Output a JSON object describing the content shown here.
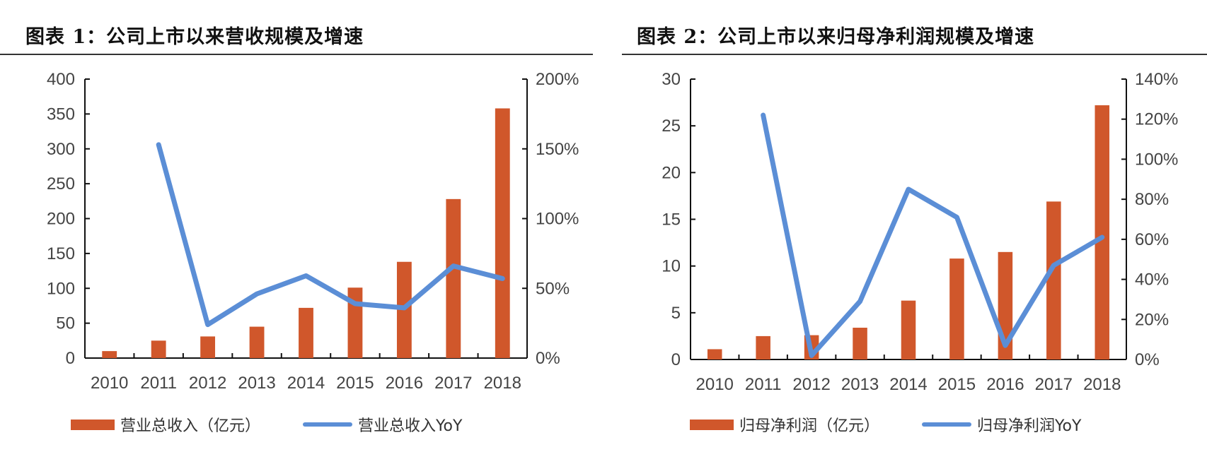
{
  "chart_data": [
    {
      "type": "bar+line",
      "title": "图表 1：公司上市以来营收规模及增速",
      "categories": [
        "2010",
        "2011",
        "2012",
        "2013",
        "2014",
        "2015",
        "2016",
        "2017",
        "2018"
      ],
      "series": [
        {
          "name": "营业总收入（亿元）",
          "type": "bar",
          "axis": "left",
          "color": "#D0572B",
          "values": [
            10,
            25,
            31,
            45,
            72,
            101,
            138,
            228,
            358
          ]
        },
        {
          "name": "营业总收入YoY",
          "type": "line",
          "axis": "right",
          "color": "#5B8ED6",
          "values": [
            null,
            153,
            24,
            46,
            59,
            39,
            36,
            66,
            57
          ]
        }
      ],
      "ylim_left": [
        0,
        400
      ],
      "yticks_left": [
        "0",
        "50",
        "100",
        "150",
        "200",
        "250",
        "300",
        "350",
        "400"
      ],
      "ylim_right": [
        0,
        200
      ],
      "yticks_right": [
        "0%",
        "50%",
        "100%",
        "150%",
        "200%"
      ],
      "grid": false,
      "legend": "bottom"
    },
    {
      "type": "bar+line",
      "title": "图表 2：公司上市以来归母净利润规模及增速",
      "categories": [
        "2010",
        "2011",
        "2012",
        "2013",
        "2014",
        "2015",
        "2016",
        "2017",
        "2018"
      ],
      "series": [
        {
          "name": "归母净利润（亿元）",
          "type": "bar",
          "axis": "left",
          "color": "#D0572B",
          "values": [
            1.1,
            2.5,
            2.6,
            3.4,
            6.3,
            10.8,
            11.5,
            16.9,
            27.2
          ]
        },
        {
          "name": "归母净利润YoY",
          "type": "line",
          "axis": "right",
          "color": "#5B8ED6",
          "values": [
            null,
            122,
            2,
            29,
            85,
            71,
            7,
            47,
            61
          ]
        }
      ],
      "ylim_left": [
        0,
        30
      ],
      "yticks_left": [
        "0",
        "5",
        "10",
        "15",
        "20",
        "25",
        "30"
      ],
      "ylim_right": [
        0,
        140
      ],
      "yticks_right": [
        "0%",
        "20%",
        "40%",
        "60%",
        "80%",
        "100%",
        "120%",
        "140%"
      ],
      "grid": false,
      "legend": "bottom"
    }
  ]
}
